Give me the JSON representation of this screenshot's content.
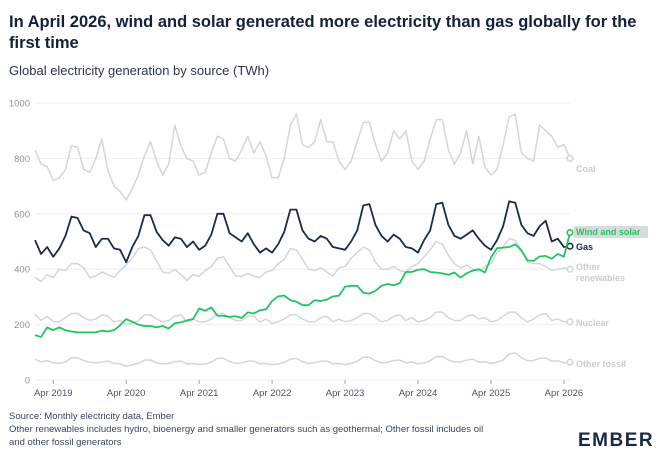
{
  "header": {
    "title": "In April 2026, wind and solar generated more electricity than gas globally for the first time",
    "subtitle": "Global electricity generation by source (TWh)"
  },
  "footer": {
    "source": "Source: Monthly electricity data, Ember",
    "note_line1": "Other renewables includes hydro, bioenergy and smaller generators such as geothermal; Other fossil includes oil",
    "note_line2": "and other fossil generators"
  },
  "brand": {
    "logo_text": "EMBER"
  },
  "colors": {
    "coal": "#d3d6dc",
    "wind_and_solar": "#22c55e",
    "gas": "#1b2a4e",
    "other_renewables": "#d3d6dc",
    "nuclear": "#d3d6dc",
    "other_fossil": "#d3d6dc",
    "grid": "#eceef2",
    "axis_text": "#8a93a6"
  },
  "chart_data": {
    "type": "line",
    "title": "Global electricity generation by source (TWh)",
    "ylim": [
      0,
      1000
    ],
    "yticks": [
      0,
      200,
      400,
      600,
      800,
      1000
    ],
    "xlim": [
      "2019-01",
      "2026-04"
    ],
    "xticks": [
      "Apr 2019",
      "Apr 2020",
      "Apr 2021",
      "Apr 2022",
      "Apr 2023",
      "Apr 2024",
      "Apr 2025",
      "Apr 2026"
    ],
    "grid": true,
    "legend": "end-of-line labels",
    "x_start": "2019-01",
    "x_end": "2026-04",
    "series": [
      {
        "name": "Coal",
        "key": "coal",
        "values": [
          830,
          780,
          770,
          720,
          730,
          760,
          845,
          840,
          760,
          750,
          800,
          870,
          755,
          700,
          680,
          650,
          690,
          740,
          810,
          860,
          790,
          740,
          780,
          920,
          845,
          800,
          790,
          740,
          750,
          820,
          880,
          870,
          800,
          790,
          830,
          880,
          820,
          860,
          810,
          730,
          730,
          800,
          920,
          960,
          850,
          840,
          860,
          940,
          860,
          860,
          790,
          760,
          790,
          860,
          930,
          930,
          850,
          790,
          820,
          900,
          870,
          900,
          790,
          760,
          790,
          870,
          940,
          940,
          830,
          780,
          820,
          900,
          780,
          880,
          770,
          740,
          760,
          850,
          950,
          960,
          820,
          800,
          790,
          920,
          900,
          880,
          840,
          850,
          800
        ]
      },
      {
        "name": "Wind and solar",
        "key": "wind_and_solar",
        "values": [
          162,
          155,
          190,
          180,
          190,
          180,
          175,
          172,
          172,
          172,
          172,
          178,
          175,
          180,
          198,
          220,
          210,
          200,
          195,
          195,
          190,
          195,
          186,
          205,
          208,
          215,
          220,
          258,
          250,
          262,
          232,
          232,
          228,
          230,
          224,
          244,
          240,
          252,
          255,
          285,
          302,
          305,
          288,
          283,
          270,
          270,
          288,
          285,
          290,
          302,
          304,
          337,
          340,
          340,
          315,
          312,
          322,
          340,
          347,
          342,
          350,
          390,
          390,
          398,
          400,
          390,
          388,
          385,
          380,
          388,
          370,
          385,
          395,
          400,
          388,
          442,
          476,
          478,
          480,
          490,
          468,
          432,
          430,
          446,
          448,
          438,
          455,
          445,
          532
        ]
      },
      {
        "name": "Gas",
        "key": "gas",
        "values": [
          505,
          455,
          480,
          445,
          475,
          520,
          590,
          585,
          540,
          530,
          480,
          510,
          510,
          475,
          470,
          425,
          480,
          520,
          595,
          595,
          535,
          505,
          485,
          515,
          510,
          480,
          500,
          470,
          485,
          525,
          600,
          600,
          530,
          515,
          500,
          530,
          490,
          460,
          475,
          460,
          490,
          535,
          615,
          615,
          540,
          510,
          500,
          520,
          510,
          480,
          475,
          470,
          500,
          540,
          630,
          635,
          560,
          520,
          500,
          525,
          510,
          480,
          475,
          460,
          505,
          540,
          635,
          640,
          560,
          520,
          510,
          525,
          540,
          510,
          485,
          470,
          505,
          555,
          645,
          640,
          560,
          530,
          520,
          555,
          575,
          500,
          510,
          480,
          483
        ]
      },
      {
        "name": "Other renewables",
        "key": "other_renewables",
        "values": [
          370,
          355,
          380,
          370,
          400,
          395,
          420,
          420,
          405,
          370,
          375,
          390,
          380,
          370,
          395,
          415,
          440,
          475,
          480,
          470,
          430,
          390,
          385,
          400,
          380,
          360,
          380,
          375,
          395,
          410,
          440,
          445,
          410,
          375,
          375,
          385,
          375,
          370,
          390,
          395,
          420,
          435,
          475,
          470,
          435,
          400,
          395,
          405,
          390,
          375,
          405,
          410,
          440,
          460,
          480,
          470,
          425,
          400,
          400,
          410,
          395,
          390,
          410,
          420,
          445,
          470,
          500,
          490,
          450,
          420,
          405,
          415,
          400,
          390,
          410,
          420,
          460,
          480,
          510,
          505,
          470,
          425,
          420,
          420,
          410,
          395,
          400,
          405,
          400
        ]
      },
      {
        "name": "Nuclear",
        "key": "nuclear",
        "values": [
          238,
          215,
          230,
          210,
          210,
          225,
          240,
          240,
          225,
          215,
          220,
          235,
          230,
          210,
          215,
          200,
          205,
          215,
          235,
          235,
          220,
          210,
          215,
          230,
          235,
          210,
          220,
          210,
          210,
          220,
          240,
          240,
          225,
          215,
          215,
          230,
          230,
          210,
          220,
          205,
          210,
          220,
          235,
          235,
          220,
          210,
          210,
          225,
          230,
          210,
          220,
          210,
          215,
          225,
          240,
          240,
          225,
          210,
          215,
          230,
          235,
          215,
          225,
          210,
          215,
          225,
          245,
          245,
          225,
          215,
          215,
          230,
          235,
          220,
          225,
          210,
          215,
          230,
          245,
          245,
          225,
          210,
          220,
          235,
          240,
          215,
          220,
          210,
          210
        ]
      },
      {
        "name": "Other fossil",
        "key": "other_fossil",
        "values": [
          75,
          65,
          70,
          62,
          60,
          65,
          80,
          80,
          70,
          65,
          62,
          65,
          68,
          60,
          58,
          50,
          55,
          60,
          72,
          72,
          62,
          58,
          60,
          66,
          68,
          58,
          60,
          56,
          58,
          65,
          78,
          78,
          66,
          60,
          62,
          68,
          68,
          58,
          60,
          55,
          58,
          64,
          75,
          78,
          66,
          60,
          62,
          68,
          68,
          58,
          60,
          55,
          60,
          68,
          82,
          82,
          70,
          62,
          64,
          70,
          72,
          62,
          65,
          58,
          62,
          70,
          85,
          85,
          72,
          65,
          66,
          72,
          75,
          64,
          66,
          60,
          64,
          72,
          95,
          98,
          80,
          70,
          70,
          78,
          80,
          68,
          70,
          62,
          64
        ]
      }
    ],
    "end_labels": {
      "coal": "Coal",
      "wind_and_solar": "Wind and solar",
      "gas": "Gas",
      "other_renewables_line1": "Other",
      "other_renewables_line2": "renewables",
      "nuclear": "Nuclear",
      "other_fossil": "Other fossil"
    }
  }
}
